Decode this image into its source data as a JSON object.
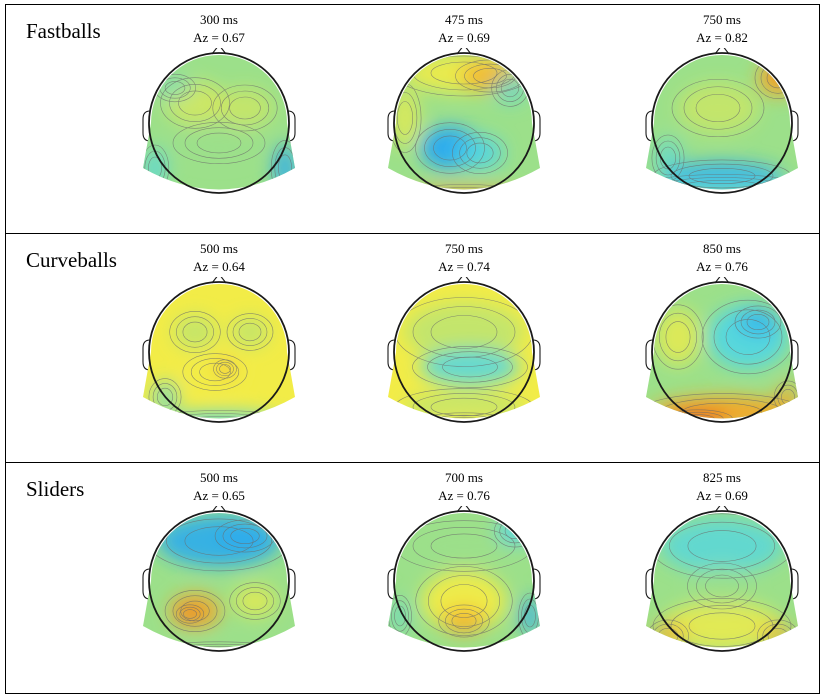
{
  "figure": {
    "panels": [
      {
        "label": "Fastballs",
        "maps": [
          {
            "time": "300 ms",
            "az": "Az = 0.67",
            "pattern": "neutral-mixed"
          },
          {
            "time": "475 ms",
            "az": "Az = 0.69",
            "pattern": "blue-center-warm-front"
          },
          {
            "time": "750 ms",
            "az": "Az = 0.82",
            "pattern": "blue-occipital-warm-right"
          }
        ]
      },
      {
        "label": "Curveballs",
        "maps": [
          {
            "time": "500 ms",
            "az": "Az = 0.64",
            "pattern": "yellow-mixed"
          },
          {
            "time": "750 ms",
            "az": "Az = 0.74",
            "pattern": "cyan-center-band"
          },
          {
            "time": "850 ms",
            "az": "Az = 0.76",
            "pattern": "cyan-right-red-occipital"
          }
        ]
      },
      {
        "label": "Sliders",
        "maps": [
          {
            "time": "500 ms",
            "az": "Az = 0.65",
            "pattern": "blue-frontal-orange-left"
          },
          {
            "time": "700 ms",
            "az": "Az = 0.76",
            "pattern": "yellow-posterior"
          },
          {
            "time": "825 ms",
            "az": "Az = 0.69",
            "pattern": "cyan-top-yellow-bottom"
          }
        ]
      }
    ]
  },
  "colors": {
    "blue": "#27a9f2",
    "cyan": "#4fd6e6",
    "green": "#9ce08a",
    "yellow": "#f2ec47",
    "orange": "#f7a625",
    "red": "#ee4a1c",
    "outline": "#1a1a1a",
    "contour": "#6b6b6b"
  }
}
